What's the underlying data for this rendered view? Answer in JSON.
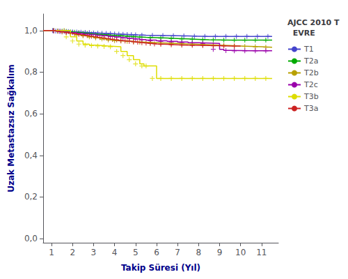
{
  "chart_data": {
    "type": "step",
    "xlabel": "Takip Süresi (Yıl)",
    "ylabel": "Uzak Metastazsız Sağkalım",
    "legend_title": "AJCC 2010 T\n  EVRE",
    "legend": "right",
    "grid": false,
    "xlim": [
      0.6,
      11.8
    ],
    "ylim": [
      -0.02,
      1.08
    ],
    "xticks": [
      1,
      2,
      3,
      4,
      5,
      6,
      7,
      8,
      9,
      10,
      11
    ],
    "yticks": [
      {
        "value": 0.0,
        "label": "0,0"
      },
      {
        "value": 0.2,
        "label": "0,2"
      },
      {
        "value": 0.4,
        "label": "0,4"
      },
      {
        "value": 0.6,
        "label": "0,6"
      },
      {
        "value": 0.8,
        "label": "0,8"
      },
      {
        "value": 1.0,
        "label": "1,0"
      }
    ],
    "series": [
      {
        "name": "T1",
        "color": "#4444cc",
        "marker": "plus",
        "x": [
          0.6,
          1.0,
          1.1,
          1.3,
          1.5,
          1.7,
          1.9,
          2.1,
          2.3,
          2.5,
          2.7,
          2.9,
          3.1,
          3.3,
          3.5,
          3.7,
          3.9,
          4.1,
          4.3,
          4.5,
          4.7,
          4.9,
          5.1,
          5.5,
          6.0,
          6.5,
          7.0,
          7.5,
          8.0,
          8.5,
          9.0,
          9.5,
          10.0,
          10.5,
          11.0,
          11.5
        ],
        "values": [
          1.0,
          1.0,
          0.998,
          0.997,
          0.996,
          0.995,
          0.994,
          0.993,
          0.992,
          0.991,
          0.99,
          0.989,
          0.988,
          0.987,
          0.986,
          0.985,
          0.984,
          0.983,
          0.982,
          0.981,
          0.98,
          0.979,
          0.978,
          0.977,
          0.976,
          0.975,
          0.974,
          0.973,
          0.972,
          0.972,
          0.972,
          0.972,
          0.972,
          0.972,
          0.972,
          0.972
        ],
        "censor_x": [
          1.05,
          1.2,
          1.4,
          1.6,
          1.8,
          2.0,
          2.2,
          2.4,
          2.6,
          2.8,
          3.0,
          3.2,
          3.4,
          3.6,
          3.8,
          4.0,
          4.2,
          4.4,
          4.6,
          4.8,
          5.0,
          5.3,
          5.8,
          6.3,
          6.8,
          7.3,
          7.8,
          8.3,
          8.8,
          9.3,
          9.8,
          10.3,
          10.8,
          11.3
        ],
        "censor_y": [
          1.0,
          0.998,
          0.997,
          0.996,
          0.995,
          0.994,
          0.993,
          0.992,
          0.991,
          0.99,
          0.989,
          0.988,
          0.987,
          0.986,
          0.985,
          0.984,
          0.983,
          0.982,
          0.981,
          0.98,
          0.979,
          0.978,
          0.977,
          0.976,
          0.975,
          0.974,
          0.973,
          0.972,
          0.972,
          0.972,
          0.972,
          0.972,
          0.972,
          0.972
        ]
      },
      {
        "name": "T2a",
        "color": "#00aa00",
        "marker": "plus",
        "x": [
          0.6,
          1.0,
          1.2,
          1.4,
          1.6,
          1.8,
          2.0,
          2.2,
          2.4,
          2.6,
          2.8,
          3.0,
          3.3,
          3.6,
          3.9,
          4.2,
          4.5,
          4.8,
          5.1,
          5.5,
          6.0,
          6.5,
          7.0,
          7.5,
          8.0,
          8.5,
          9.0,
          9.5,
          10.0,
          10.5,
          11.0,
          11.5
        ],
        "values": [
          1.0,
          1.0,
          0.998,
          0.997,
          0.996,
          0.994,
          0.992,
          0.99,
          0.988,
          0.986,
          0.984,
          0.982,
          0.98,
          0.978,
          0.976,
          0.974,
          0.972,
          0.97,
          0.968,
          0.966,
          0.964,
          0.962,
          0.96,
          0.958,
          0.956,
          0.955,
          0.954,
          0.954,
          0.954,
          0.954,
          0.954,
          0.954
        ],
        "censor_x": [
          1.1,
          1.3,
          1.5,
          1.7,
          1.9,
          2.1,
          2.3,
          2.5,
          2.7,
          2.9,
          3.1,
          3.4,
          3.7,
          4.0,
          4.3,
          4.6,
          4.9,
          5.2,
          5.7,
          6.2,
          6.7,
          7.2,
          7.7,
          8.2,
          8.7,
          9.2,
          9.7,
          10.2,
          10.7,
          11.2
        ],
        "censor_y": [
          1.0,
          0.998,
          0.997,
          0.996,
          0.994,
          0.992,
          0.99,
          0.988,
          0.986,
          0.984,
          0.982,
          0.98,
          0.978,
          0.976,
          0.974,
          0.972,
          0.97,
          0.968,
          0.966,
          0.964,
          0.962,
          0.96,
          0.958,
          0.956,
          0.955,
          0.954,
          0.954,
          0.954,
          0.954,
          0.954
        ]
      },
      {
        "name": "T2b",
        "color": "#b8a000",
        "marker": "plus",
        "x": [
          0.6,
          1.5,
          1.8,
          2.1,
          2.4,
          2.7,
          3.0,
          3.3,
          3.6,
          3.9,
          4.2,
          4.5,
          4.8,
          5.1,
          5.5,
          6.0,
          6.5,
          7.0,
          7.5,
          8.0,
          8.5,
          9.0,
          9.5,
          10.0,
          10.5,
          11.0,
          11.5
        ],
        "values": [
          1.0,
          1.0,
          0.99,
          0.98,
          0.975,
          0.97,
          0.965,
          0.96,
          0.955,
          0.952,
          0.95,
          0.948,
          0.946,
          0.944,
          0.942,
          0.94,
          0.938,
          0.936,
          0.934,
          0.932,
          0.93,
          0.928,
          0.926,
          0.924,
          0.922,
          0.92,
          0.92
        ],
        "censor_x": [
          1.6,
          1.9,
          2.2,
          2.5,
          2.8,
          3.1,
          3.4,
          3.7,
          4.0,
          4.3,
          4.6,
          4.9,
          5.2,
          5.7,
          6.2,
          6.7,
          7.2,
          7.7,
          8.2,
          8.7,
          9.2,
          9.7,
          10.2,
          10.7,
          11.2
        ],
        "censor_y": [
          1.0,
          0.99,
          0.98,
          0.975,
          0.97,
          0.965,
          0.96,
          0.955,
          0.952,
          0.95,
          0.948,
          0.946,
          0.944,
          0.942,
          0.94,
          0.938,
          0.936,
          0.934,
          0.932,
          0.93,
          0.928,
          0.926,
          0.924,
          0.922,
          0.92
        ]
      },
      {
        "name": "T2c",
        "color": "#9900aa",
        "marker": "plus",
        "x": [
          0.6,
          1.0,
          1.3,
          1.6,
          1.9,
          2.2,
          2.5,
          2.8,
          3.1,
          3.4,
          3.7,
          4.0,
          4.3,
          4.6,
          4.9,
          5.2,
          5.5,
          6.0,
          6.5,
          7.0,
          7.5,
          8.0,
          8.5,
          9.0,
          9.2,
          9.5,
          10.0,
          10.5,
          11.0,
          11.5
        ],
        "values": [
          1.0,
          0.998,
          0.996,
          0.993,
          0.99,
          0.987,
          0.984,
          0.981,
          0.978,
          0.975,
          0.972,
          0.969,
          0.966,
          0.963,
          0.96,
          0.957,
          0.954,
          0.951,
          0.948,
          0.945,
          0.942,
          0.94,
          0.938,
          0.91,
          0.905,
          0.904,
          0.903,
          0.903,
          0.903,
          0.903
        ],
        "censor_x": [
          1.1,
          1.4,
          1.7,
          2.0,
          2.3,
          2.6,
          2.9,
          3.2,
          3.5,
          3.8,
          4.1,
          4.4,
          4.7,
          5.0,
          5.3,
          5.7,
          6.2,
          6.7,
          7.2,
          7.7,
          8.2,
          8.7,
          9.3,
          9.7,
          10.2,
          10.7,
          11.2
        ],
        "censor_y": [
          0.998,
          0.996,
          0.993,
          0.99,
          0.987,
          0.984,
          0.981,
          0.978,
          0.975,
          0.972,
          0.969,
          0.966,
          0.963,
          0.96,
          0.957,
          0.951,
          0.948,
          0.945,
          0.942,
          0.94,
          0.938,
          0.91,
          0.904,
          0.903,
          0.903,
          0.903,
          0.903
        ]
      },
      {
        "name": "T3b",
        "color": "#dddd00",
        "marker": "plus",
        "x": [
          0.6,
          1.5,
          1.9,
          2.2,
          2.5,
          2.8,
          3.1,
          3.4,
          3.7,
          4.0,
          4.3,
          4.6,
          4.9,
          5.2,
          5.4,
          5.6,
          6.0,
          6.5,
          7.0,
          7.5,
          8.0,
          8.5,
          9.0,
          9.5,
          10.0,
          10.5,
          11.0,
          11.5
        ],
        "values": [
          1.0,
          1.0,
          0.97,
          0.95,
          0.935,
          0.93,
          0.928,
          0.926,
          0.924,
          0.922,
          0.9,
          0.88,
          0.86,
          0.84,
          0.83,
          0.83,
          0.77,
          0.77,
          0.77,
          0.77,
          0.77,
          0.77,
          0.77,
          0.77,
          0.77,
          0.77,
          0.77,
          0.77
        ],
        "censor_x": [
          1.7,
          2.0,
          2.3,
          2.6,
          2.9,
          3.2,
          3.5,
          3.8,
          4.1,
          4.4,
          4.7,
          5.0,
          5.3,
          5.5,
          5.8,
          6.2,
          6.7,
          7.2,
          7.7,
          8.2,
          8.7,
          9.2,
          9.7,
          10.2,
          10.7,
          11.2
        ],
        "censor_y": [
          0.97,
          0.95,
          0.935,
          0.93,
          0.928,
          0.926,
          0.924,
          0.922,
          0.9,
          0.88,
          0.86,
          0.84,
          0.83,
          0.83,
          0.77,
          0.77,
          0.77,
          0.77,
          0.77,
          0.77,
          0.77,
          0.77,
          0.77,
          0.77,
          0.77,
          0.77
        ]
      },
      {
        "name": "T3a",
        "color": "#cc2222",
        "marker": "plus",
        "x": [
          0.6,
          1.0,
          1.2,
          1.4,
          1.6,
          1.8,
          2.0,
          2.2,
          2.4,
          2.6,
          2.8,
          3.0,
          3.2,
          3.4,
          3.6,
          3.8,
          4.0,
          4.2,
          4.4,
          4.6,
          4.8,
          5.0,
          5.2,
          5.4,
          5.6,
          5.8,
          6.0,
          6.5,
          7.0,
          7.5,
          8.0,
          8.5,
          9.0,
          9.5,
          10.0
        ],
        "values": [
          1.0,
          1.0,
          0.997,
          0.994,
          0.991,
          0.988,
          0.985,
          0.982,
          0.979,
          0.976,
          0.973,
          0.97,
          0.967,
          0.964,
          0.961,
          0.958,
          0.955,
          0.952,
          0.95,
          0.948,
          0.946,
          0.944,
          0.942,
          0.94,
          0.938,
          0.936,
          0.934,
          0.932,
          0.93,
          0.929,
          0.928,
          0.927,
          0.926,
          0.926,
          0.926
        ],
        "censor_x": [
          1.1,
          1.3,
          1.5,
          1.7,
          1.9,
          2.1,
          2.3,
          2.5,
          2.7,
          2.9,
          3.1,
          3.3,
          3.5,
          3.7,
          3.9,
          4.1,
          4.3,
          4.5,
          4.7,
          4.9,
          5.1,
          5.3,
          5.5,
          5.7,
          5.9,
          6.2,
          6.7,
          7.2,
          7.7,
          8.2,
          8.7,
          9.2,
          9.7
        ],
        "censor_y": [
          1.0,
          0.997,
          0.994,
          0.991,
          0.988,
          0.985,
          0.982,
          0.979,
          0.976,
          0.973,
          0.97,
          0.967,
          0.964,
          0.961,
          0.958,
          0.955,
          0.952,
          0.95,
          0.948,
          0.946,
          0.944,
          0.942,
          0.94,
          0.938,
          0.936,
          0.934,
          0.932,
          0.93,
          0.929,
          0.928,
          0.927,
          0.926,
          0.926
        ]
      }
    ]
  }
}
